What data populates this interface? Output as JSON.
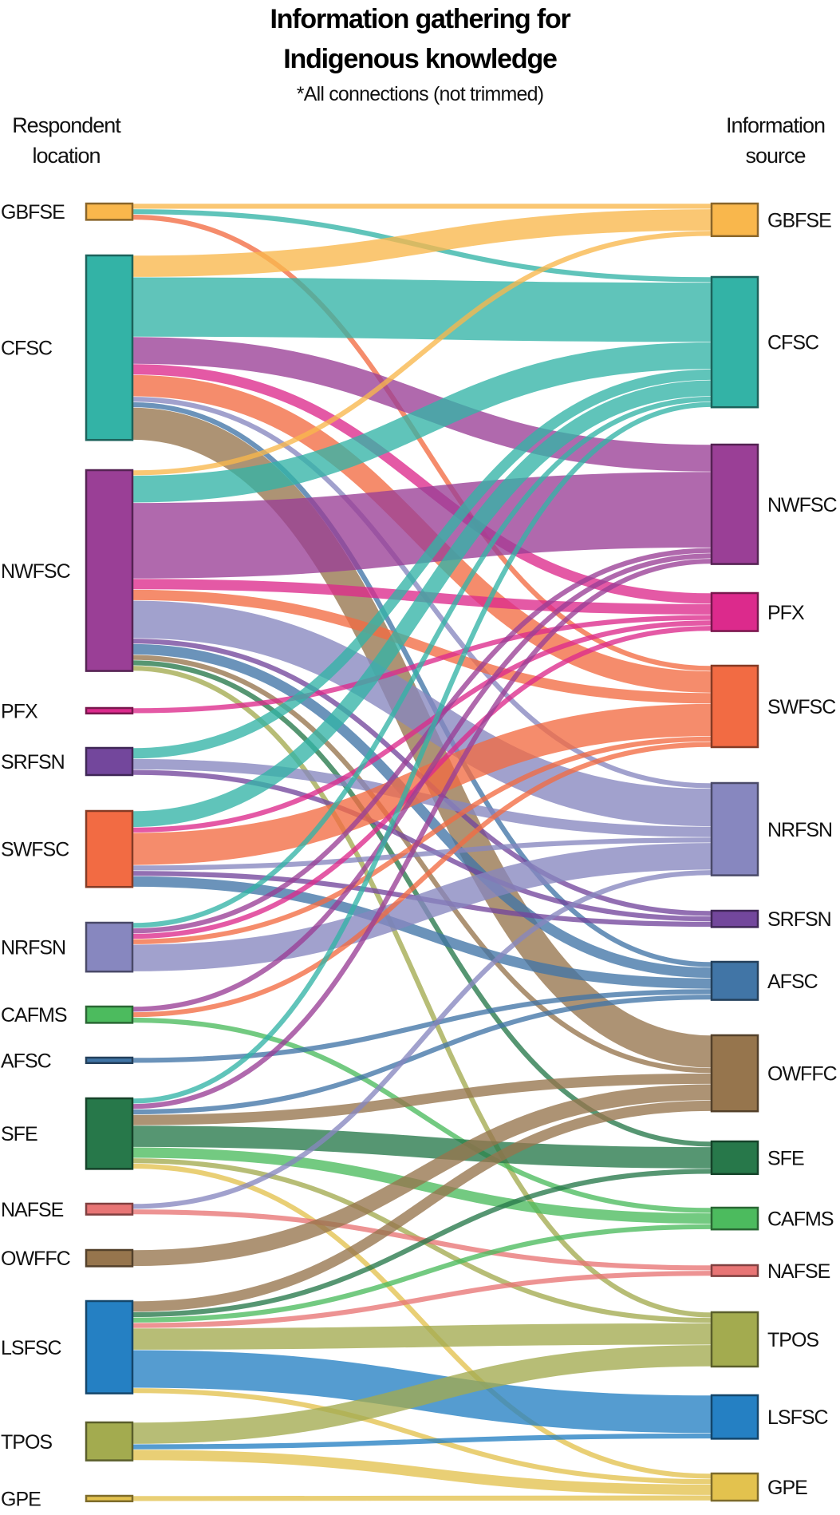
{
  "chart_data": {
    "type": "sankey",
    "title_line1": "Information gathering for",
    "title_line2": "Indigenous knowledge",
    "subtitle": "*All connections (not trimmed)",
    "left_axis": {
      "line1": "Respondent",
      "line2": "location"
    },
    "right_axis": {
      "line1": "Information",
      "line2": "source"
    },
    "left_nodes": [
      "GBFSE",
      "CFSC",
      "NWFSC",
      "PFX",
      "SRFSN",
      "SWFSC",
      "NRFSN",
      "CAFMS",
      "AFSC",
      "SFE",
      "NAFSE",
      "OWFFC",
      "LSFSC",
      "TPOS",
      "GPE"
    ],
    "right_nodes": [
      "GBFSE",
      "CFSC",
      "NWFSC",
      "PFX",
      "SWFSC",
      "NRFSN",
      "SRFSN",
      "AFSC",
      "OWFFC",
      "SFE",
      "CAFMS",
      "NAFSE",
      "TPOS",
      "LSFSC",
      "GPE"
    ],
    "colors": {
      "GBFSE": "#F9B74C",
      "CFSC": "#33B3A6",
      "NWFSC": "#9A3F96",
      "PFX": "#DC2A8C",
      "SRFSN": "#73479C",
      "SWFSC": "#F26B43",
      "NRFSN": "#8787BF",
      "CAFMS": "#4CBB5E",
      "AFSC": "#4175A6",
      "SFE": "#27784A",
      "NAFSE": "#E87575",
      "OWFFC": "#96754D",
      "LSFSC": "#2580C3",
      "TPOS": "#A3AB4F",
      "GPE": "#E3C24E"
    },
    "links": [
      {
        "source": "GBFSE",
        "target": "GBFSE",
        "value": 1
      },
      {
        "source": "GBFSE",
        "target": "CFSC",
        "value": 1
      },
      {
        "source": "GBFSE",
        "target": "SWFSC",
        "value": 1
      },
      {
        "source": "CFSC",
        "target": "GBFSE",
        "value": 4
      },
      {
        "source": "CFSC",
        "target": "CFSC",
        "value": 11
      },
      {
        "source": "CFSC",
        "target": "NWFSC",
        "value": 5
      },
      {
        "source": "CFSC",
        "target": "PFX",
        "value": 2
      },
      {
        "source": "CFSC",
        "target": "SWFSC",
        "value": 4
      },
      {
        "source": "CFSC",
        "target": "NRFSN",
        "value": 1
      },
      {
        "source": "CFSC",
        "target": "AFSC",
        "value": 1
      },
      {
        "source": "CFSC",
        "target": "OWFFC",
        "value": 6
      },
      {
        "source": "NWFSC",
        "target": "GBFSE",
        "value": 1
      },
      {
        "source": "NWFSC",
        "target": "CFSC",
        "value": 5
      },
      {
        "source": "NWFSC",
        "target": "NWFSC",
        "value": 14
      },
      {
        "source": "NWFSC",
        "target": "PFX",
        "value": 2
      },
      {
        "source": "NWFSC",
        "target": "SWFSC",
        "value": 2
      },
      {
        "source": "NWFSC",
        "target": "NRFSN",
        "value": 7
      },
      {
        "source": "NWFSC",
        "target": "SRFSN",
        "value": 1
      },
      {
        "source": "NWFSC",
        "target": "AFSC",
        "value": 2
      },
      {
        "source": "NWFSC",
        "target": "OWFFC",
        "value": 1
      },
      {
        "source": "NWFSC",
        "target": "SFE",
        "value": 1
      },
      {
        "source": "NWFSC",
        "target": "TPOS",
        "value": 1
      },
      {
        "source": "PFX",
        "target": "PFX",
        "value": 1
      },
      {
        "source": "SRFSN",
        "target": "CFSC",
        "value": 2
      },
      {
        "source": "SRFSN",
        "target": "NRFSN",
        "value": 2
      },
      {
        "source": "SRFSN",
        "target": "SRFSN",
        "value": 1
      },
      {
        "source": "SWFSC",
        "target": "CFSC",
        "value": 3
      },
      {
        "source": "SWFSC",
        "target": "PFX",
        "value": 1
      },
      {
        "source": "SWFSC",
        "target": "SWFSC",
        "value": 6
      },
      {
        "source": "SWFSC",
        "target": "NRFSN",
        "value": 1
      },
      {
        "source": "SWFSC",
        "target": "SRFSN",
        "value": 1
      },
      {
        "source": "SWFSC",
        "target": "AFSC",
        "value": 2
      },
      {
        "source": "NRFSN",
        "target": "CFSC",
        "value": 1
      },
      {
        "source": "NRFSN",
        "target": "NWFSC",
        "value": 1
      },
      {
        "source": "NRFSN",
        "target": "PFX",
        "value": 1
      },
      {
        "source": "NRFSN",
        "target": "SWFSC",
        "value": 1
      },
      {
        "source": "NRFSN",
        "target": "NRFSN",
        "value": 5
      },
      {
        "source": "CAFMS",
        "target": "NWFSC",
        "value": 1
      },
      {
        "source": "CAFMS",
        "target": "SWFSC",
        "value": 1
      },
      {
        "source": "CAFMS",
        "target": "CAFMS",
        "value": 1
      },
      {
        "source": "AFSC",
        "target": "AFSC",
        "value": 1
      },
      {
        "source": "SFE",
        "target": "CFSC",
        "value": 1
      },
      {
        "source": "SFE",
        "target": "NWFSC",
        "value": 1
      },
      {
        "source": "SFE",
        "target": "AFSC",
        "value": 1
      },
      {
        "source": "SFE",
        "target": "OWFFC",
        "value": 2
      },
      {
        "source": "SFE",
        "target": "SFE",
        "value": 4
      },
      {
        "source": "SFE",
        "target": "CAFMS",
        "value": 2
      },
      {
        "source": "SFE",
        "target": "TPOS",
        "value": 1
      },
      {
        "source": "SFE",
        "target": "GPE",
        "value": 1
      },
      {
        "source": "NAFSE",
        "target": "NRFSN",
        "value": 1
      },
      {
        "source": "NAFSE",
        "target": "NAFSE",
        "value": 1
      },
      {
        "source": "OWFFC",
        "target": "OWFFC",
        "value": 3
      },
      {
        "source": "LSFSC",
        "target": "OWFFC",
        "value": 2
      },
      {
        "source": "LSFSC",
        "target": "SFE",
        "value": 1
      },
      {
        "source": "LSFSC",
        "target": "CAFMS",
        "value": 1
      },
      {
        "source": "LSFSC",
        "target": "NAFSE",
        "value": 1
      },
      {
        "source": "LSFSC",
        "target": "TPOS",
        "value": 4
      },
      {
        "source": "LSFSC",
        "target": "LSFSC",
        "value": 7
      },
      {
        "source": "LSFSC",
        "target": "GPE",
        "value": 1
      },
      {
        "source": "TPOS",
        "target": "TPOS",
        "value": 4
      },
      {
        "source": "TPOS",
        "target": "LSFSC",
        "value": 1
      },
      {
        "source": "TPOS",
        "target": "GPE",
        "value": 2
      },
      {
        "source": "GPE",
        "target": "GPE",
        "value": 1
      }
    ]
  }
}
